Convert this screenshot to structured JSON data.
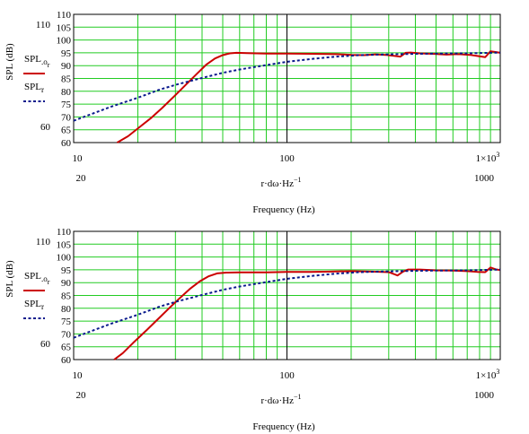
{
  "chart_data": [
    {
      "type": "line",
      "xscale": "log",
      "xlim": [
        10,
        1000
      ],
      "ylim": [
        60,
        110
      ],
      "yticks": [
        60,
        65,
        70,
        75,
        80,
        85,
        90,
        95,
        100,
        105,
        110
      ],
      "y_outer_ticks": [
        60,
        110
      ],
      "xticks_upper": [
        "10",
        "100",
        "1×10"
      ],
      "xticks_upper_exp": "3",
      "xticks_lower": [
        "20",
        "1000"
      ],
      "ylabel": "SPL (dB)",
      "xlabel_main": "r·dω·Hz",
      "xlabel_exp": "−1",
      "xlabel_sub": "Frequency (Hz)",
      "grid": true,
      "legend": [
        {
          "base": "SPL",
          "sub": ".o",
          "subsub": "r",
          "color": "#cc0000",
          "dash": "solid"
        },
        {
          "base": "SPL",
          "sub": "r",
          "subsub": "",
          "color": "#0a1a8c",
          "dash": "dotted"
        }
      ],
      "series": [
        {
          "color": "#cc0000",
          "x": [
            16,
            18,
            20,
            23,
            26,
            30,
            34,
            38,
            42,
            46,
            50,
            54,
            58,
            65,
            80,
            100,
            130,
            170,
            200,
            230,
            260,
            290,
            320,
            340,
            360,
            380,
            420,
            480,
            560,
            640,
            720,
            780,
            850,
            900,
            950,
            1000
          ],
          "y": [
            60,
            62.5,
            65.5,
            69.5,
            73.5,
            78.5,
            83,
            87,
            90.5,
            92.8,
            94.1,
            94.8,
            95,
            94.9,
            94.7,
            94.7,
            94.6,
            94.5,
            94.2,
            94.1,
            94.4,
            94.2,
            93.8,
            93.5,
            95,
            95.1,
            94.8,
            94.6,
            94.3,
            94.5,
            94.2,
            93.8,
            93.3,
            95.6,
            95.3,
            95
          ]
        },
        {
          "color": "#0a1a8c",
          "x": [
            10,
            12,
            15,
            20,
            25,
            30,
            40,
            50,
            60,
            80,
            100,
            130,
            170,
            220,
            300,
            400,
            500,
            700,
            900,
            1000
          ],
          "y": [
            68.5,
            71,
            74,
            77.5,
            80.5,
            82.5,
            85.2,
            87.2,
            88.5,
            90.2,
            91.5,
            92.6,
            93.5,
            94.1,
            94.4,
            94.6,
            94.7,
            94.8,
            95,
            95.1
          ]
        }
      ]
    },
    {
      "type": "line",
      "xscale": "log",
      "xlim": [
        10,
        1000
      ],
      "ylim": [
        60,
        110
      ],
      "yticks": [
        60,
        65,
        70,
        75,
        80,
        85,
        90,
        95,
        100,
        105,
        110
      ],
      "y_outer_ticks": [
        60,
        110
      ],
      "xticks_upper": [
        "10",
        "100",
        "1×10"
      ],
      "xticks_upper_exp": "3",
      "xticks_lower": [
        "20",
        "1000"
      ],
      "ylabel": "SPL (dB)",
      "xlabel_main": "r·dω·Hz",
      "xlabel_exp": "−1",
      "xlabel_sub": "Frequency (Hz)",
      "grid": true,
      "legend": [
        {
          "base": "SPL",
          "sub": ".o",
          "subsub": "r",
          "color": "#cc0000",
          "dash": "solid"
        },
        {
          "base": "SPL",
          "sub": "r",
          "subsub": "",
          "color": "#0a1a8c",
          "dash": "dotted"
        }
      ],
      "series": [
        {
          "color": "#cc0000",
          "x": [
            15.5,
            17,
            19,
            22,
            25,
            28,
            31,
            35,
            39,
            43,
            47,
            52,
            60,
            80,
            100,
            130,
            160,
            200,
            250,
            300,
            330,
            350,
            370,
            420,
            500,
            600,
            700,
            780,
            850,
            900,
            950,
            1000
          ],
          "y": [
            60,
            62.5,
            66.5,
            71.5,
            76,
            80,
            83.5,
            87.5,
            90.5,
            92.5,
            93.6,
            93.9,
            94,
            94,
            94.2,
            94.2,
            94.3,
            94.5,
            94.3,
            94.1,
            92.8,
            94.3,
            95.1,
            95.1,
            94.8,
            94.7,
            94.5,
            94.2,
            94.1,
            95.9,
            95.2,
            94.9
          ]
        },
        {
          "color": "#0a1a8c",
          "x": [
            10,
            12,
            15,
            20,
            25,
            30,
            40,
            50,
            60,
            80,
            100,
            130,
            170,
            220,
            300,
            400,
            500,
            700,
            900,
            1000
          ],
          "y": [
            68.5,
            71,
            74,
            77.5,
            80.5,
            82.5,
            85.2,
            87.2,
            88.5,
            90.2,
            91.5,
            92.6,
            93.5,
            94.1,
            94.4,
            94.6,
            94.7,
            94.8,
            95,
            95.1
          ]
        }
      ]
    }
  ]
}
